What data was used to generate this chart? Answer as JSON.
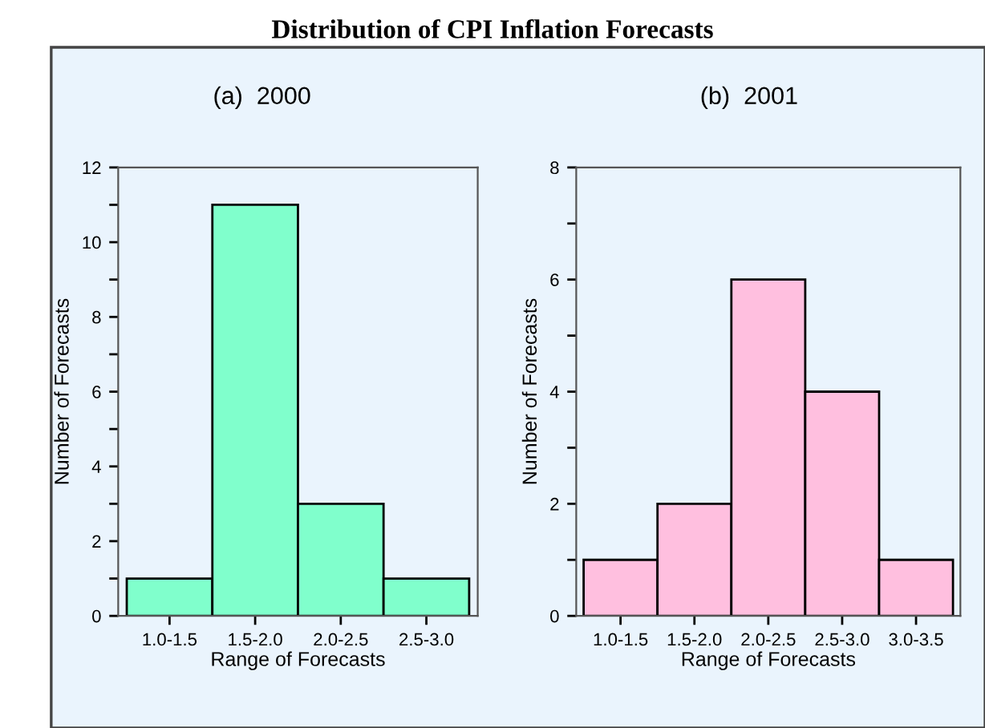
{
  "chart_data": [
    {
      "type": "bar",
      "title": "Distribution of CPI Inflation Forecasts",
      "subtitle": "(a)  2000",
      "xlabel": "Range of Forecasts",
      "ylabel": "Number of Forecasts",
      "categories": [
        "1.0-1.5",
        "1.5-2.0",
        "2.0-2.5",
        "2.5-3.0"
      ],
      "values": [
        1,
        11,
        3,
        1
      ],
      "color": "#80ffcc",
      "ylim": [
        0,
        12
      ],
      "yticks": [
        0,
        {
          "value": 1,
          "label": null
        },
        2,
        {
          "value": 3,
          "label": null
        },
        4,
        {
          "value": 5,
          "label": null
        },
        6,
        {
          "value": 7,
          "label": null
        },
        8,
        {
          "value": 9,
          "label": null
        },
        10,
        {
          "value": 11,
          "label": null
        },
        12
      ],
      "grid": false
    },
    {
      "type": "bar",
      "subtitle": "(b)  2001",
      "xlabel": "Range of Forecasts",
      "ylabel": "Number of Forecasts",
      "categories": [
        "1.0-1.5",
        "1.5-2.0",
        "2.0-2.5",
        "2.5-3.0",
        "3.0-3.5"
      ],
      "values": [
        1,
        2,
        6,
        4,
        1
      ],
      "color": "#ffbfdf",
      "ylim": [
        0,
        8
      ],
      "yticks": [
        0,
        {
          "value": 1,
          "label": null
        },
        2,
        {
          "value": 3,
          "label": null
        },
        4,
        {
          "value": 5,
          "label": null
        },
        6,
        {
          "value": 7,
          "label": null
        },
        8
      ],
      "grid": false
    }
  ]
}
